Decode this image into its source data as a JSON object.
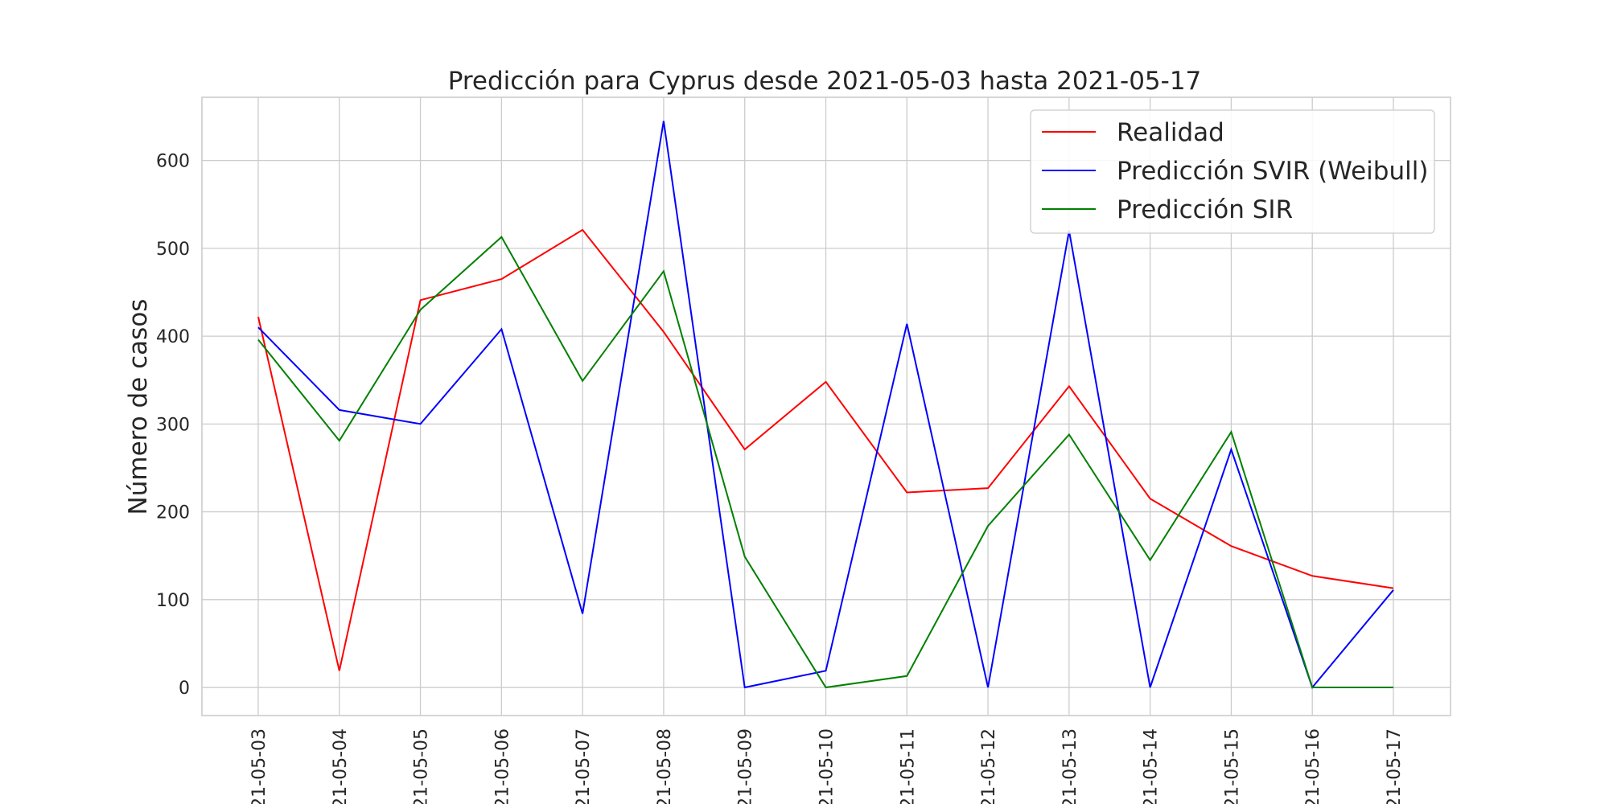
{
  "chart_data": {
    "type": "line",
    "title": "Predicción para Cyprus desde 2021-05-03 hasta 2021-05-17",
    "xlabel": "",
    "ylabel": "Número de casos",
    "categories": [
      "21-05-03",
      "21-05-04",
      "21-05-05",
      "21-05-06",
      "21-05-07",
      "21-05-08",
      "21-05-09",
      "21-05-10",
      "21-05-11",
      "21-05-12",
      "21-05-13",
      "21-05-14",
      "21-05-15",
      "21-05-16",
      "21-05-17"
    ],
    "ylim": [
      -32,
      672
    ],
    "yticks": [
      0,
      100,
      200,
      300,
      400,
      500,
      600
    ],
    "grid": true,
    "legend_position": "top-right",
    "series": [
      {
        "name": "Realidad",
        "color": "#ff0000",
        "values": [
          422,
          19,
          441,
          465,
          521,
          405,
          271,
          348,
          222,
          227,
          343,
          215,
          161,
          127,
          113
        ]
      },
      {
        "name": "Predicción SVIR (Weibull)",
        "color": "#0000ff",
        "values": [
          410,
          316,
          300,
          408,
          84,
          645,
          0,
          19,
          414,
          0,
          520,
          0,
          271,
          0,
          111
        ]
      },
      {
        "name": "Predicción SIR",
        "color": "#008000",
        "values": [
          396,
          281,
          430,
          513,
          349,
          474,
          149,
          0,
          13,
          184,
          288,
          145,
          291,
          0,
          0
        ]
      }
    ]
  }
}
